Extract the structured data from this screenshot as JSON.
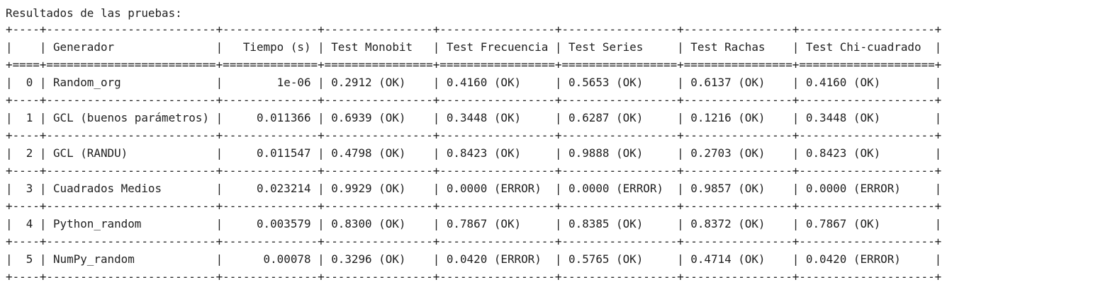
{
  "output": {
    "heading": "Resultados de las pruebas:",
    "table": {
      "border_line": "+----+-------------------------+--------------+----------------+-----------------+-----------------+----------------+--------------------+",
      "header_separator": "+====+=========================+==============+================+=================+=================+================+====================+",
      "header": "|    | Generador               |   Tiempo (s) | Test Monobit   | Test Frecuencia | Test Series     | Test Rachas    | Test Chi-cuadrado  |",
      "columns": [
        "",
        "Generador",
        "Tiempo (s)",
        "Test Monobit",
        "Test Frecuencia",
        "Test Series",
        "Test Rachas",
        "Test Chi-cuadrado"
      ],
      "rows": [
        {
          "text": "|  0 | Random_org              |        1e-06 | 0.2912 (OK)    | 0.4160 (OK)     | 0.5653 (OK)     | 0.6137 (OK)    | 0.4160 (OK)        |",
          "cells": [
            "0",
            "Random_org",
            "1e-06",
            "0.2912 (OK)",
            "0.4160 (OK)",
            "0.5653 (OK)",
            "0.6137 (OK)",
            "0.4160 (OK)"
          ]
        },
        {
          "text": "|  1 | GCL (buenos parámetros) |     0.011366 | 0.6939 (OK)    | 0.3448 (OK)     | 0.6287 (OK)     | 0.1216 (OK)    | 0.3448 (OK)        |",
          "cells": [
            "1",
            "GCL (buenos parámetros)",
            "0.011366",
            "0.6939 (OK)",
            "0.3448 (OK)",
            "0.6287 (OK)",
            "0.1216 (OK)",
            "0.3448 (OK)"
          ]
        },
        {
          "text": "|  2 | GCL (RANDU)             |     0.011547 | 0.4798 (OK)    | 0.8423 (OK)     | 0.9888 (OK)     | 0.2703 (OK)    | 0.8423 (OK)        |",
          "cells": [
            "2",
            "GCL (RANDU)",
            "0.011547",
            "0.4798 (OK)",
            "0.8423 (OK)",
            "0.9888 (OK)",
            "0.2703 (OK)",
            "0.8423 (OK)"
          ]
        },
        {
          "text": "|  3 | Cuadrados Medios        |     0.023214 | 0.9929 (OK)    | 0.0000 (ERROR)  | 0.0000 (ERROR)  | 0.9857 (OK)    | 0.0000 (ERROR)     |",
          "cells": [
            "3",
            "Cuadrados Medios",
            "0.023214",
            "0.9929 (OK)",
            "0.0000 (ERROR)",
            "0.0000 (ERROR)",
            "0.9857 (OK)",
            "0.0000 (ERROR)"
          ]
        },
        {
          "text": "|  4 | Python_random           |     0.003579 | 0.8300 (OK)    | 0.7867 (OK)     | 0.8385 (OK)     | 0.8372 (OK)    | 0.7867 (OK)        |",
          "cells": [
            "4",
            "Python_random",
            "0.003579",
            "0.8300 (OK)",
            "0.7867 (OK)",
            "0.8385 (OK)",
            "0.8372 (OK)",
            "0.7867 (OK)"
          ]
        },
        {
          "text": "|  5 | NumPy_random            |      0.00078 | 0.3296 (OK)    | 0.0420 (ERROR)  | 0.5765 (OK)     | 0.4714 (OK)    | 0.0420 (ERROR)     |",
          "cells": [
            "5",
            "NumPy_random",
            "0.00078",
            "0.3296 (OK)",
            "0.0420 (ERROR)",
            "0.5765 (OK)",
            "0.4714 (OK)",
            "0.0420 (ERROR)"
          ]
        }
      ]
    }
  }
}
